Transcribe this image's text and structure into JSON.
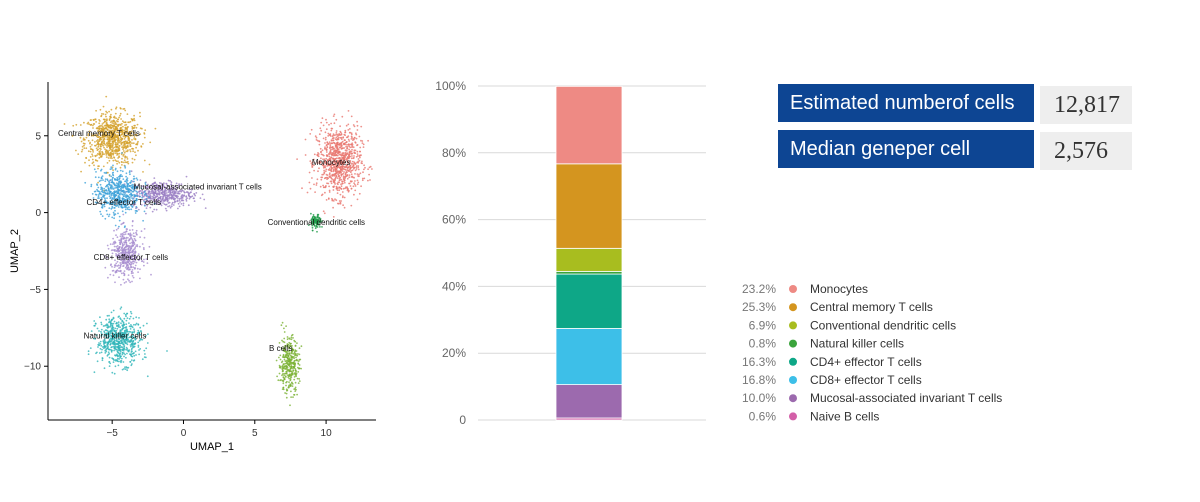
{
  "stats": {
    "cells_label": "Estimated numberof cells",
    "cells_value": "12,817",
    "genes_label": "Median geneper cell",
    "genes_value": "2,576"
  },
  "chart_data": [
    {
      "type": "scatter",
      "xlabel": "UMAP_1",
      "ylabel": "UMAP_2",
      "xlim": [
        -9.5,
        13.5
      ],
      "ylim": [
        -13.5,
        8.5
      ],
      "x_ticks": [
        -5,
        0,
        5,
        10
      ],
      "y_ticks": [
        5,
        0,
        -5,
        -10
      ],
      "grid": false,
      "clusters": [
        {
          "name": "Central memory T cells",
          "color": "#d4a12c",
          "center": [
            -5.0,
            4.8
          ],
          "spread": [
            1.6,
            1.4
          ],
          "label_at": [
            -8.8,
            5.0
          ]
        },
        {
          "name": "Monocytes",
          "color": "#e8776f",
          "center": [
            10.9,
            3.3
          ],
          "spread": [
            1.3,
            1.9
          ],
          "label_at": [
            9.0,
            3.1
          ]
        },
        {
          "name": "Mucosal-associated invariant T cells",
          "color": "#9b7fc4",
          "center": [
            -1.5,
            1.2
          ],
          "spread": [
            1.8,
            0.7
          ],
          "label_at": [
            -3.5,
            1.5
          ]
        },
        {
          "name": "CD4+ effector T cells",
          "color": "#3fa3d9",
          "center": [
            -4.6,
            1.3
          ],
          "spread": [
            1.3,
            1.2
          ],
          "label_at": [
            -6.8,
            0.5
          ]
        },
        {
          "name": "Conventional dendritic cells",
          "color": "#1f9b48",
          "center": [
            9.3,
            -0.6
          ],
          "spread": [
            0.3,
            0.4
          ],
          "label_at": [
            5.9,
            -0.8
          ]
        },
        {
          "name": "CD8+ effector T cells",
          "color": "#a78dcf",
          "center": [
            -4.0,
            -2.7
          ],
          "spread": [
            0.9,
            1.3
          ],
          "label_at": [
            -6.3,
            -3.1
          ]
        },
        {
          "name": "Natural killer cells",
          "color": "#2fb5b9",
          "center": [
            -4.5,
            -8.3
          ],
          "spread": [
            1.3,
            1.3
          ],
          "label_at": [
            -7.0,
            -8.2
          ]
        },
        {
          "name": "B cells",
          "color": "#7ab133",
          "center": [
            7.4,
            -9.9
          ],
          "spread": [
            0.6,
            1.5
          ],
          "label_at": [
            6.0,
            -9.0
          ]
        }
      ]
    },
    {
      "type": "bar",
      "stacked": true,
      "ylim": [
        0,
        100
      ],
      "y_ticks": [
        "0",
        "20%",
        "40%",
        "60%",
        "80%",
        "100%"
      ],
      "legend_position": "right",
      "series": [
        {
          "name": "Naive B cells",
          "value": 0.6,
          "label": "0.6%",
          "color": "#d35fa8"
        },
        {
          "name": "Mucosal-associated invariant T cells",
          "value": 10.0,
          "label": "10.0%",
          "color": "#9c6aae"
        },
        {
          "name": "CD8+ effector T cells",
          "value": 16.8,
          "label": "16.8%",
          "color": "#3dbfe8"
        },
        {
          "name": "CD4+ effector T cells",
          "value": 16.3,
          "label": "16.3%",
          "color": "#0ea787"
        },
        {
          "name": "Natural killer cells",
          "value": 0.8,
          "label": "0.8%",
          "color": "#3aa43c"
        },
        {
          "name": "Conventional dendritic cells",
          "value": 6.9,
          "label": "6.9%",
          "color": "#a8bd1f"
        },
        {
          "name": "Central memory T cells",
          "value": 25.3,
          "label": "25.3%",
          "color": "#d4951f"
        },
        {
          "name": "Monocytes",
          "value": 23.2,
          "label": "23.2%",
          "color": "#ee8a84"
        }
      ],
      "legend_order": [
        "Monocytes",
        "Central memory T cells",
        "Conventional dendritic cells",
        "Natural killer cells",
        "CD4+ effector T cells",
        "CD8+ effector T cells",
        "Mucosal-associated invariant T cells",
        "Naive B cells"
      ]
    }
  ]
}
